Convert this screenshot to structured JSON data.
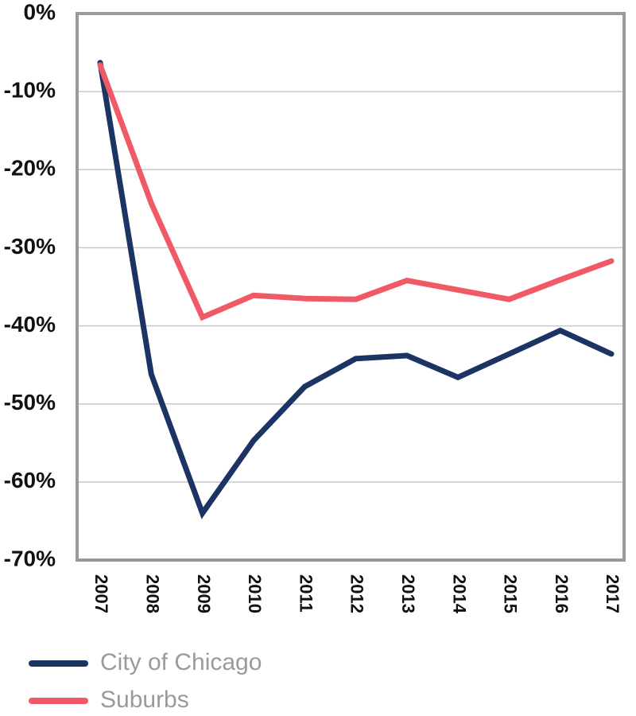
{
  "chart_data": {
    "type": "line",
    "title": "",
    "xlabel": "",
    "ylabel": "",
    "x": [
      "2007",
      "2008",
      "2009",
      "2010",
      "2011",
      "2012",
      "2013",
      "2014",
      "2015",
      "2016",
      "2017"
    ],
    "ylim": [
      -70,
      0
    ],
    "yticks": [
      0,
      -10,
      -20,
      -30,
      -40,
      -50,
      -60,
      -70
    ],
    "ytick_labels": [
      "0%",
      "-10%",
      "-20%",
      "-30%",
      "-40%",
      "-50%",
      "-60%",
      "-70%"
    ],
    "grid": "horizontal",
    "legend_position": "bottom-left",
    "series": [
      {
        "name": "City of Chicago",
        "color": "#1b3464",
        "values": [
          -6.3,
          -46.2,
          -64.0,
          -54.7,
          -47.8,
          -44.2,
          -43.8,
          -46.6,
          -43.6,
          -40.6,
          -43.6
        ]
      },
      {
        "name": "Suburbs",
        "color": "#f05a66",
        "values": [
          -6.6,
          -24.3,
          -38.9,
          -36.1,
          -36.5,
          -36.6,
          -34.2,
          -35.4,
          -36.6,
          -34.1,
          -31.7
        ]
      }
    ]
  }
}
